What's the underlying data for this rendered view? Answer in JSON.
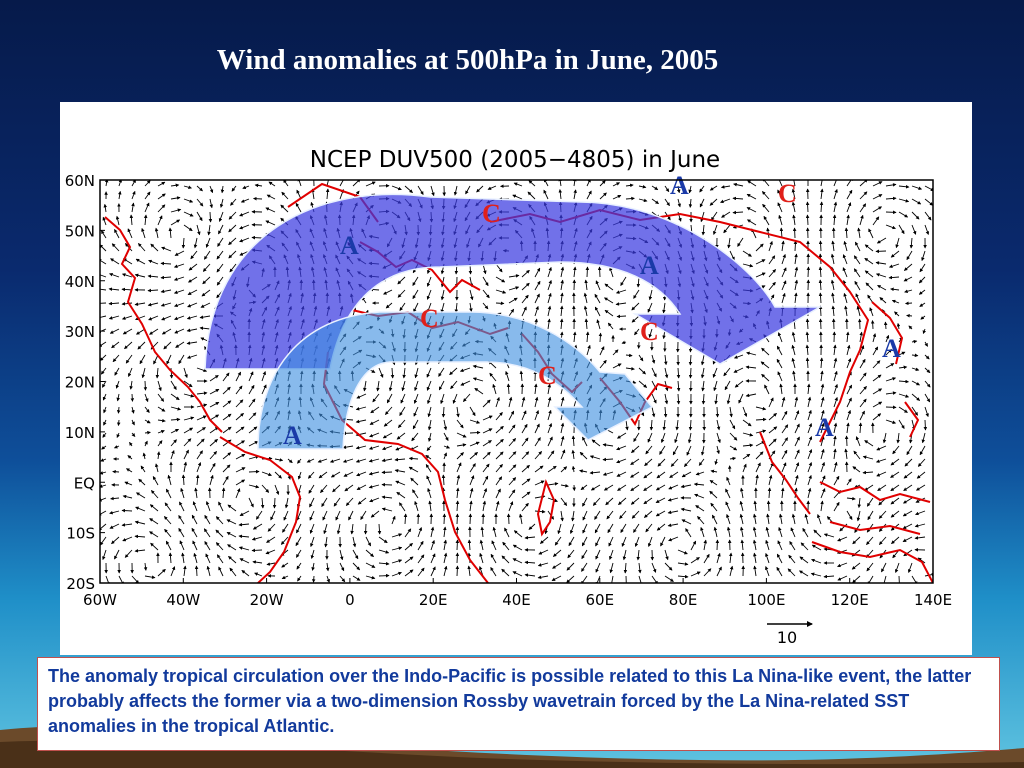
{
  "slide": {
    "title": "Wind anomalies at 500hPa  in June, 2005",
    "caption": "The anomaly tropical circulation over the Indo-Pacific is possible related to this La Nina-like event, the latter probably affects the former via a two-dimension Rossby wavetrain forced by the La Nina-related SST anomalies in the tropical Atlantic."
  },
  "figure": {
    "title": "NCEP DUV500 (2005−4805) in June",
    "lat_labels": [
      "60N",
      "50N",
      "40N",
      "30N",
      "20N",
      "10N",
      "EQ",
      "10S",
      "20S"
    ],
    "lon_labels": [
      "60W",
      "40W",
      "20W",
      "0",
      "20E",
      "40E",
      "60E",
      "80E",
      "100E",
      "120E",
      "140E"
    ],
    "reference_vector_label": "10",
    "centers": [
      {
        "label": "A",
        "color": "#1a3aa8"
      },
      {
        "label": "C",
        "color": "#e0201a"
      },
      {
        "label": "A",
        "color": "#1a3aa8"
      },
      {
        "label": "C",
        "color": "#e0201a"
      },
      {
        "label": "A",
        "color": "#1a3aa8"
      },
      {
        "label": "C",
        "color": "#e0201a"
      },
      {
        "label": "C",
        "color": "#e0201a"
      },
      {
        "label": "A",
        "color": "#1a3aa8"
      },
      {
        "label": "C",
        "color": "#e0201a"
      },
      {
        "label": "A",
        "color": "#1a3aa8"
      },
      {
        "label": "A",
        "color": "#1a3aa8"
      }
    ],
    "colors": {
      "outer_arrow": "#3a3ae0",
      "inner_arrow": "#3f8fe0",
      "coastline": "#e00000",
      "wind_vectors": "#000000"
    }
  }
}
